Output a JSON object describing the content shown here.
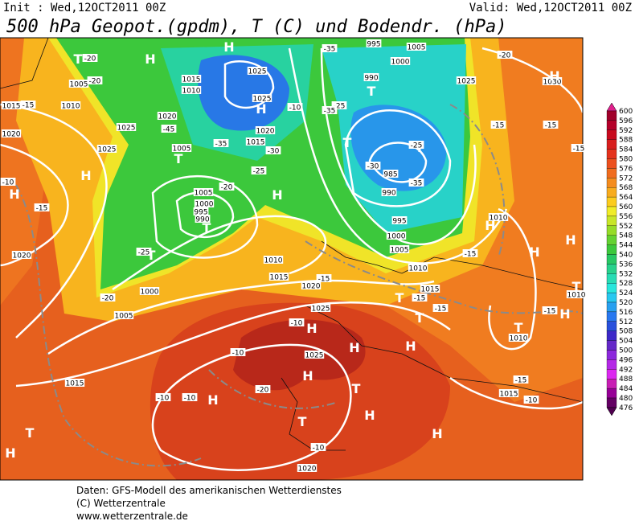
{
  "header": {
    "init": "Init : Wed,12OCT2011 00Z",
    "valid": "Valid: Wed,12OCT2011 00Z",
    "title": "500 hPa Geopot.(gpdm), T (C) und Bodendr. (hPa)"
  },
  "footer": [
    "Daten: GFS-Modell des amerikanischen Wetterdienstes",
    "(C) Wetterzentrale",
    "www.wetterzentrale.de"
  ],
  "colorbar": [
    600,
    596,
    592,
    588,
    584,
    580,
    576,
    572,
    568,
    564,
    560,
    556,
    552,
    548,
    544,
    540,
    536,
    532,
    528,
    524,
    520,
    516,
    512,
    508,
    504,
    500,
    496,
    492,
    488,
    484,
    480,
    476
  ],
  "map_labels": [
    "T",
    "-20",
    "H",
    "H",
    "1005",
    "-20",
    "1015",
    "-15",
    "1010",
    "1015",
    "1010",
    "1025",
    "1025",
    "H",
    "-10",
    "-35",
    "995",
    "1005",
    "1000",
    "990",
    "T",
    "-25",
    "-35",
    "1020",
    "-45",
    "1020",
    "1020",
    "1025",
    "-35",
    "1015",
    "-30",
    "1025",
    "1005",
    "T",
    "T",
    "T",
    "-25",
    "-30",
    "985",
    "-35",
    "990",
    "-20",
    "H",
    "1005",
    "1000",
    "995",
    "990",
    "T",
    "-25",
    "H",
    "H",
    "-10",
    "-15",
    "1020",
    "T",
    "-25",
    "995",
    "1000",
    "1005",
    "1010",
    "1010",
    "1015",
    "1020",
    "-15",
    "-20",
    "1000",
    "1005",
    "1015",
    "-15",
    "-15",
    "T",
    "1025",
    "-10",
    "H",
    "T",
    "T",
    "1010",
    "-15",
    "1010",
    "H",
    "H",
    "H",
    "T",
    "H",
    "-15",
    "-15",
    "-15",
    "1025",
    "-20",
    "1030",
    "H",
    "1010",
    "-15",
    "-10",
    "1025",
    "H",
    "H",
    "H",
    "-15",
    "1015",
    "1015",
    "-10",
    "-10",
    "-10",
    "H",
    "-20",
    "T",
    "T",
    "H",
    "H",
    "T",
    "H",
    "-10",
    "1020"
  ]
}
